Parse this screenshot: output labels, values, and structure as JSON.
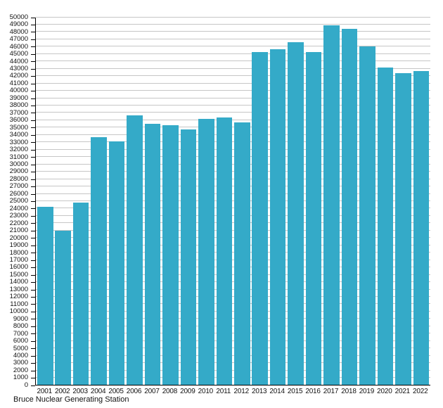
{
  "chart_data": {
    "type": "bar",
    "title": "",
    "caption": "Bruce Nuclear Generating Station",
    "xlabel": "",
    "ylabel": "",
    "categories": [
      "2001",
      "2002",
      "2003",
      "2004",
      "2005",
      "2006",
      "2007",
      "2008",
      "2009",
      "2010",
      "2011",
      "2012",
      "2013",
      "2014",
      "2015",
      "2016",
      "2017",
      "2018",
      "2019",
      "2020",
      "2021",
      "2022"
    ],
    "values": [
      24200,
      20900,
      24800,
      33700,
      33100,
      36600,
      35500,
      35300,
      34700,
      36100,
      36300,
      35700,
      45200,
      45600,
      46600,
      45200,
      48900,
      48400,
      46000,
      43100,
      42400,
      42600
    ],
    "ylim": [
      0,
      50000
    ],
    "ytick_step": 1000,
    "grid": "horizontal",
    "legend": "none",
    "colors": {
      "bar": "#34aac8",
      "grid": "#c6c6c6",
      "axis": "#000000",
      "text": "#111111",
      "background": "#ffffff"
    }
  }
}
